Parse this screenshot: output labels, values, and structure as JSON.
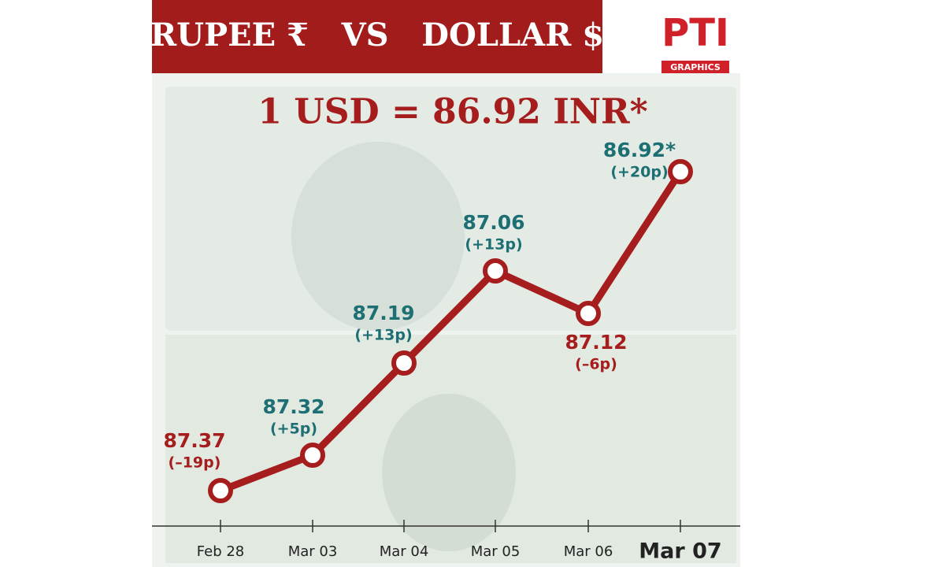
{
  "chart_data": {
    "type": "line",
    "title": "RUPEE ₹   VS   DOLLAR $",
    "headline": "1 USD = 86.92 INR*",
    "logo": {
      "name": "PTI",
      "sub": "GRAPHICS"
    },
    "categories": [
      "Feb 28",
      "Mar 03",
      "Mar 04",
      "Mar 05",
      "Mar 06",
      "Mar 07"
    ],
    "series": [
      {
        "name": "USD/INR",
        "color": "#a51d1d",
        "values": [
          87.37,
          87.32,
          87.19,
          87.06,
          87.12,
          86.92
        ],
        "value_labels": [
          "87.37",
          "87.32",
          "87.19",
          "87.06",
          "87.12",
          "86.92*"
        ],
        "changes": [
          "(–19p)",
          "(+5p)",
          "(+13p)",
          "(+13p)",
          "(–6p)",
          "(+20p)"
        ],
        "label_colors": [
          "#a51d1d",
          "#1d6f74",
          "#1d6f74",
          "#1d6f74",
          "#a51d1d",
          "#1d6f74"
        ]
      }
    ],
    "ylim": [
      87.42,
      86.85
    ]
  }
}
